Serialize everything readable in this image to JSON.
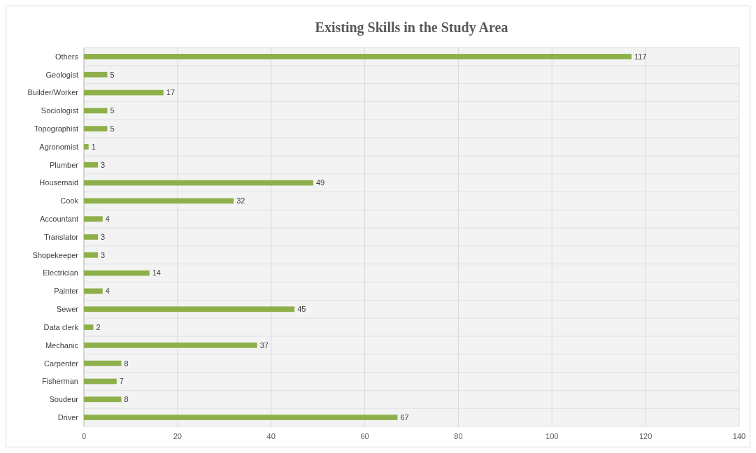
{
  "chart_data": {
    "type": "bar",
    "orientation": "horizontal",
    "title": "Existing Skills in the Study Area",
    "categories": [
      "Others",
      "Geologist",
      "Builder/Worker",
      "Sociologist",
      "Topographist",
      "Agronomist",
      "Plumber",
      "Housemaid",
      "Cook",
      "Accountant",
      "Translator",
      "Shopekeeper",
      "Electrician",
      "Painter",
      "Sewer",
      "Data clerk",
      "Mechanic",
      "Carpenter",
      "Fisherman",
      "Soudeur",
      "Driver"
    ],
    "values": [
      117,
      5,
      17,
      5,
      5,
      1,
      3,
      49,
      32,
      4,
      3,
      3,
      14,
      4,
      45,
      2,
      37,
      8,
      7,
      8,
      67
    ],
    "color": "#8db04a",
    "xlim": [
      0,
      140
    ],
    "xticks": [
      0,
      20,
      40,
      60,
      80,
      100,
      120,
      140
    ],
    "grid": true,
    "data_labels": true
  }
}
